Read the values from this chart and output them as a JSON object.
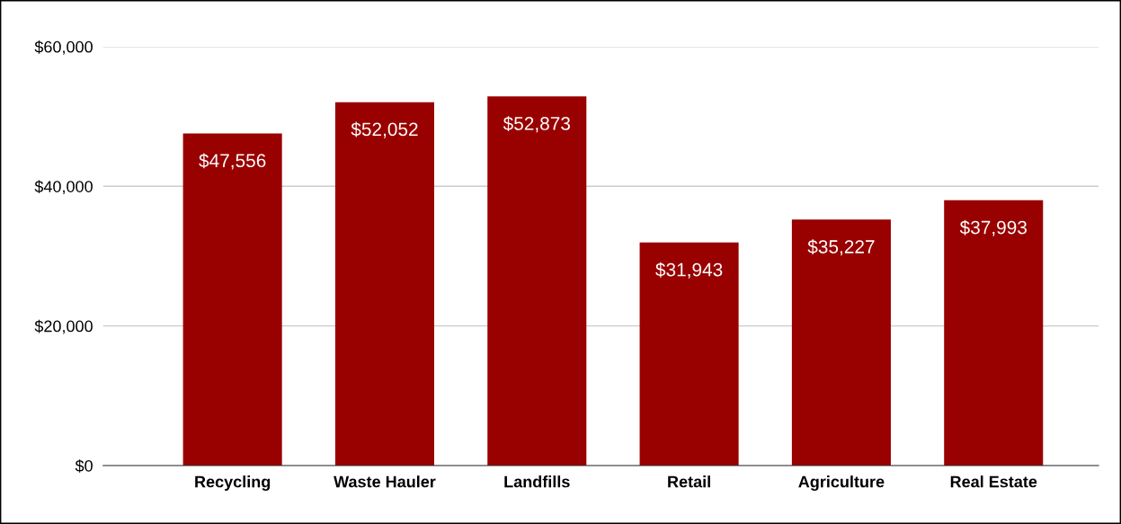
{
  "chart_data": {
    "type": "bar",
    "categories": [
      "Recycling",
      "Waste Hauler",
      "Landfills",
      "Retail",
      "Agriculture",
      "Real Estate"
    ],
    "values": [
      47556,
      52052,
      52873,
      31943,
      35227,
      37993
    ],
    "value_labels": [
      "$47,556",
      "$52,052",
      "$52,873",
      "$31,943",
      "$35,227",
      "$37,993"
    ],
    "color": "#990000",
    "ylim": [
      0,
      60000
    ],
    "yticks": [
      {
        "value": 0,
        "label": "$0"
      },
      {
        "value": 20000,
        "label": "$20,000"
      },
      {
        "value": 40000,
        "label": "$40,000"
      },
      {
        "value": 60000,
        "label": "$60,000"
      }
    ],
    "grid": "y"
  }
}
